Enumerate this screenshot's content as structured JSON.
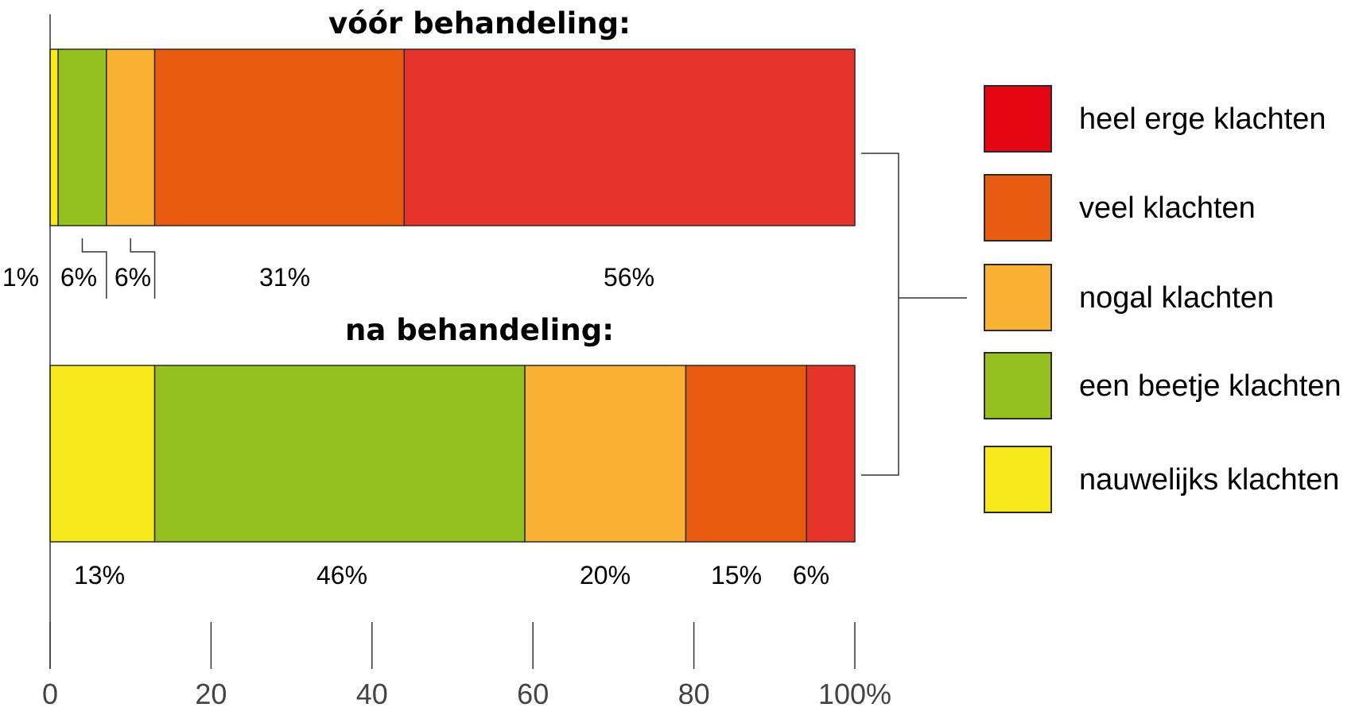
{
  "chart_data": {
    "type": "bar",
    "orientation": "horizontal",
    "stacked": true,
    "xlim": [
      0,
      100
    ],
    "x_ticks": [
      {
        "value": 0,
        "label": "0"
      },
      {
        "value": 20,
        "label": "20"
      },
      {
        "value": 40,
        "label": "40"
      },
      {
        "value": 60,
        "label": "60"
      },
      {
        "value": 80,
        "label": "80"
      },
      {
        "value": 100,
        "label": "100%"
      }
    ],
    "legend_position": "right",
    "categories": [
      {
        "key": "nauwelijks",
        "label": "nauwelijks klachten",
        "color": "#f7e81c",
        "legend_color": "#f7e81c"
      },
      {
        "key": "beetje",
        "label": "een beetje klachten",
        "color": "#95c11f",
        "legend_color": "#95c11f"
      },
      {
        "key": "nogal",
        "label": "nogal klachten",
        "color": "#f8b133",
        "legend_color": "#f8b133"
      },
      {
        "key": "veel",
        "label": "veel klachten",
        "color": "#e95c0f",
        "legend_color": "#e95c0f"
      },
      {
        "key": "heel_erg",
        "label": "heel erge klachten",
        "color": "#e6332a",
        "legend_color": "#e30613"
      }
    ],
    "bars": [
      {
        "title": "vóór behandeling:",
        "values": [
          1,
          6,
          6,
          31,
          56
        ],
        "value_labels": [
          "1%",
          "6%",
          "6%",
          "31%",
          "56%"
        ]
      },
      {
        "title": "na behandeling:",
        "values": [
          13,
          46,
          20,
          15,
          6
        ],
        "value_labels": [
          "13%",
          "46%",
          "20%",
          "15%",
          "6%"
        ]
      }
    ]
  }
}
